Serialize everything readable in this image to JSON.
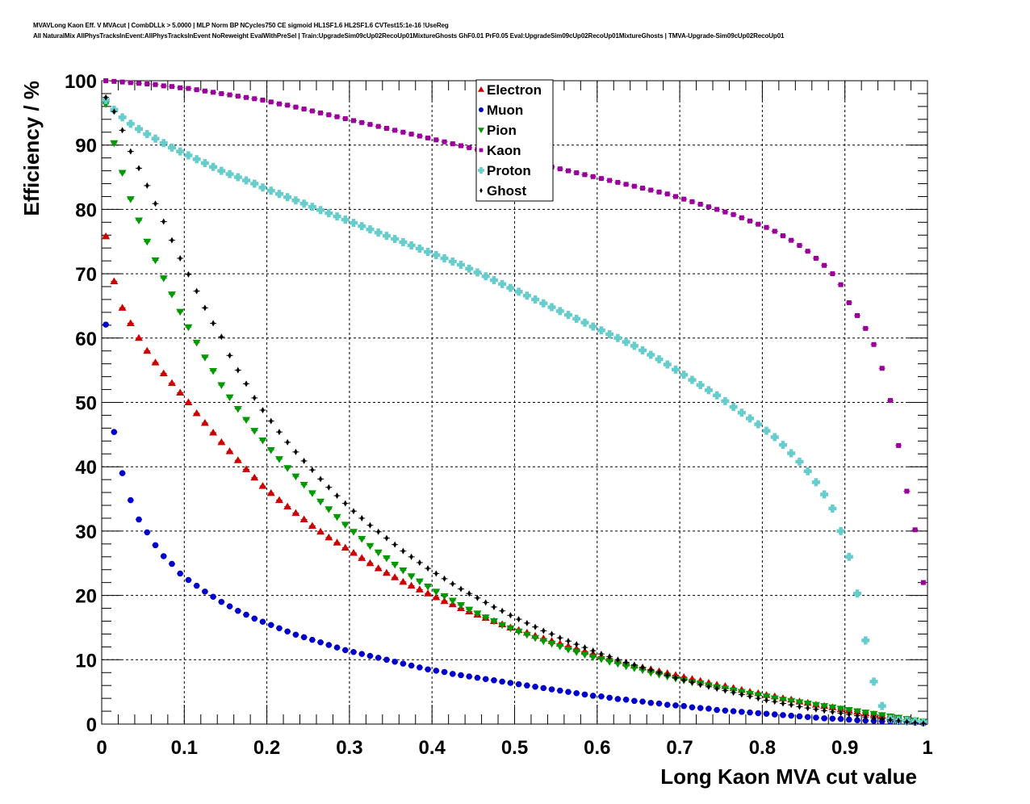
{
  "header": {
    "line1": "MVAVLong Kaon Eff. V MVAcut | CombDLLk > 5.0000 | MLP Norm BP NCycles750 CE sigmoid HL1SF1.6 HL2SF1.6 CVTest15:1e-16 !UseReg",
    "line2": "All NaturalMix AllPhysTracksInEvent:AllPhysTracksInEvent NoReweight EvalWithPreSel | Train:UpgradeSim09cUp02RecoUp01MixtureGhosts GhF0.01 PrF0.05 Eval:UpgradeSim09cUp02RecoUp01MixtureGhosts | TMVA-Upgrade-Sim09cUp02RecoUp01"
  },
  "chart_data": {
    "type": "scatter",
    "title": "",
    "xlabel": "Long Kaon MVA cut value",
    "ylabel": "Efficiency / %",
    "xlim": [
      0,
      1
    ],
    "ylim": [
      0,
      100
    ],
    "x_ticks": [
      "0",
      "0.1",
      "0.2",
      "0.3",
      "0.4",
      "0.5",
      "0.6",
      "0.7",
      "0.8",
      "0.9",
      "1"
    ],
    "y_ticks": [
      "0",
      "10",
      "20",
      "30",
      "40",
      "50",
      "60",
      "70",
      "80",
      "90",
      "100"
    ],
    "grid": true,
    "legend_position": "top-center",
    "x": [
      0.005,
      0.015,
      0.025,
      0.035,
      0.045,
      0.055,
      0.065,
      0.075,
      0.085,
      0.095,
      0.105,
      0.115,
      0.125,
      0.135,
      0.145,
      0.155,
      0.165,
      0.175,
      0.185,
      0.195,
      0.205,
      0.215,
      0.225,
      0.235,
      0.245,
      0.255,
      0.265,
      0.275,
      0.285,
      0.295,
      0.305,
      0.315,
      0.325,
      0.335,
      0.345,
      0.355,
      0.365,
      0.375,
      0.385,
      0.395,
      0.405,
      0.415,
      0.425,
      0.435,
      0.445,
      0.455,
      0.465,
      0.475,
      0.485,
      0.495,
      0.505,
      0.515,
      0.525,
      0.535,
      0.545,
      0.555,
      0.565,
      0.575,
      0.585,
      0.595,
      0.605,
      0.615,
      0.625,
      0.635,
      0.645,
      0.655,
      0.665,
      0.675,
      0.685,
      0.695,
      0.705,
      0.715,
      0.725,
      0.735,
      0.745,
      0.755,
      0.765,
      0.775,
      0.785,
      0.795,
      0.805,
      0.815,
      0.825,
      0.835,
      0.845,
      0.855,
      0.865,
      0.875,
      0.885,
      0.895,
      0.905,
      0.915,
      0.925,
      0.935,
      0.945,
      0.955,
      0.965,
      0.975,
      0.985,
      0.995
    ],
    "series": [
      {
        "name": "Electron",
        "color": "#cc0000",
        "marker": "triangle-up",
        "values": [
          75.8,
          68.8,
          64.7,
          62.3,
          60.0,
          58.0,
          56.2,
          54.5,
          53.0,
          51.5,
          50.0,
          48.3,
          46.8,
          45.3,
          43.8,
          42.4,
          41.0,
          39.6,
          38.3,
          37.0,
          35.9,
          34.8,
          33.8,
          32.8,
          31.8,
          30.8,
          29.9,
          29.0,
          28.2,
          27.4,
          26.6,
          25.8,
          25.0,
          24.2,
          23.5,
          22.8,
          22.1,
          21.5,
          20.9,
          20.3,
          19.7,
          19.1,
          18.6,
          18.0,
          17.5,
          17.0,
          16.5,
          16.0,
          15.5,
          15.0,
          14.6,
          14.2,
          13.7,
          13.3,
          12.9,
          12.5,
          12.1,
          11.7,
          11.3,
          10.9,
          10.5,
          10.2,
          9.8,
          9.5,
          9.1,
          8.8,
          8.5,
          8.2,
          7.9,
          7.6,
          7.3,
          7.0,
          6.7,
          6.4,
          6.1,
          5.9,
          5.6,
          5.3,
          5.0,
          4.8,
          4.5,
          4.3,
          4.0,
          3.8,
          3.5,
          3.3,
          3.0,
          2.8,
          2.6,
          2.3,
          2.1,
          1.9,
          1.7,
          1.5,
          1.3,
          1.1,
          0.9,
          0.7,
          0.5,
          0.3
        ]
      },
      {
        "name": "Muon",
        "color": "#0000cc",
        "marker": "circle",
        "values": [
          62.1,
          45.4,
          39.0,
          34.8,
          31.8,
          29.8,
          27.8,
          26.1,
          24.9,
          23.4,
          22.4,
          21.5,
          20.6,
          19.8,
          19.0,
          18.3,
          17.6,
          17.0,
          16.4,
          15.9,
          15.4,
          14.9,
          14.4,
          13.9,
          13.5,
          13.1,
          12.7,
          12.3,
          11.9,
          11.5,
          11.2,
          10.9,
          10.6,
          10.3,
          10.0,
          9.7,
          9.4,
          9.1,
          8.8,
          8.5,
          8.3,
          8.1,
          7.8,
          7.6,
          7.4,
          7.2,
          7.0,
          6.8,
          6.6,
          6.4,
          6.2,
          6.0,
          5.8,
          5.6,
          5.4,
          5.2,
          5.0,
          4.8,
          4.6,
          4.4,
          4.3,
          4.1,
          3.9,
          3.8,
          3.6,
          3.5,
          3.3,
          3.2,
          3.0,
          2.9,
          2.8,
          2.6,
          2.5,
          2.4,
          2.2,
          2.1,
          2.0,
          1.9,
          1.8,
          1.7,
          1.6,
          1.5,
          1.4,
          1.3,
          1.2,
          1.1,
          1.0,
          0.9,
          0.85,
          0.8,
          0.7,
          0.6,
          0.55,
          0.5,
          0.45,
          0.4,
          0.35,
          0.3,
          0.2,
          0.1
        ]
      },
      {
        "name": "Pion",
        "color": "#009900",
        "marker": "triangle-down",
        "values": [
          96.4,
          90.3,
          85.7,
          81.6,
          78.3,
          75.0,
          72.1,
          69.3,
          66.8,
          64.1,
          61.7,
          59.3,
          57.0,
          54.9,
          52.7,
          50.8,
          49.0,
          47.3,
          45.6,
          44.1,
          42.6,
          41.2,
          39.8,
          38.5,
          37.2,
          35.9,
          34.6,
          33.4,
          32.2,
          31.0,
          29.9,
          28.8,
          27.7,
          26.7,
          25.8,
          24.8,
          23.9,
          23.0,
          22.2,
          21.4,
          20.6,
          19.9,
          19.2,
          18.5,
          17.8,
          17.2,
          16.6,
          16.0,
          15.4,
          14.9,
          14.4,
          13.9,
          13.4,
          12.9,
          12.5,
          12.1,
          11.6,
          11.2,
          10.8,
          10.4,
          10.1,
          9.7,
          9.4,
          9.0,
          8.7,
          8.4,
          8.0,
          7.7,
          7.4,
          7.1,
          6.8,
          6.5,
          6.3,
          6.0,
          5.7,
          5.5,
          5.2,
          5.0,
          4.7,
          4.5,
          4.3,
          4.0,
          3.8,
          3.6,
          3.4,
          3.2,
          3.0,
          2.8,
          2.6,
          2.4,
          2.2,
          2.0,
          1.8,
          1.6,
          1.4,
          1.2,
          1.0,
          0.8,
          0.6,
          0.4
        ]
      },
      {
        "name": "Kaon",
        "color": "#990099",
        "marker": "square",
        "values": [
          100.0,
          99.9,
          99.8,
          99.7,
          99.6,
          99.5,
          99.4,
          99.2,
          99.1,
          98.9,
          98.8,
          98.6,
          98.4,
          98.2,
          98.0,
          97.8,
          97.6,
          97.4,
          97.2,
          97.0,
          96.7,
          96.4,
          96.2,
          95.9,
          95.6,
          95.3,
          95.0,
          94.7,
          94.4,
          94.1,
          93.8,
          93.5,
          93.2,
          92.9,
          92.6,
          92.3,
          92.0,
          91.7,
          91.4,
          91.1,
          90.8,
          90.5,
          90.2,
          89.9,
          89.6,
          89.3,
          89.0,
          88.7,
          88.4,
          88.1,
          87.8,
          87.5,
          87.2,
          86.9,
          86.6,
          86.3,
          86.0,
          85.7,
          85.4,
          85.1,
          84.8,
          84.5,
          84.2,
          83.9,
          83.6,
          83.3,
          83.0,
          82.7,
          82.4,
          82.0,
          81.6,
          81.2,
          80.8,
          80.4,
          80.0,
          79.6,
          79.2,
          78.7,
          78.2,
          77.7,
          77.2,
          76.6,
          75.9,
          75.2,
          74.4,
          73.5,
          72.4,
          71.3,
          70.0,
          68.3,
          65.5,
          63.5,
          61.5,
          59.0,
          55.3,
          50.3,
          43.3,
          36.2,
          30.2,
          22.0
        ]
      },
      {
        "name": "Proton",
        "color": "#66cccc",
        "marker": "cross",
        "values": [
          97.0,
          95.5,
          94.3,
          93.3,
          92.5,
          91.7,
          91.0,
          90.3,
          89.6,
          89.0,
          88.4,
          87.8,
          87.2,
          86.6,
          86.0,
          85.5,
          85.0,
          84.5,
          84.0,
          83.4,
          82.9,
          82.4,
          81.9,
          81.4,
          80.9,
          80.4,
          79.9,
          79.4,
          78.9,
          78.4,
          77.9,
          77.4,
          76.9,
          76.4,
          75.9,
          75.4,
          74.9,
          74.4,
          73.9,
          73.4,
          72.9,
          72.4,
          71.9,
          71.4,
          70.8,
          70.2,
          69.6,
          69.0,
          68.4,
          67.8,
          67.2,
          66.6,
          66.0,
          65.4,
          64.8,
          64.2,
          63.6,
          63.0,
          62.4,
          61.8,
          61.2,
          60.6,
          60.0,
          59.4,
          58.8,
          58.1,
          57.4,
          56.7,
          55.9,
          55.1,
          54.3,
          53.5,
          52.7,
          51.9,
          51.1,
          50.2,
          49.3,
          48.4,
          47.5,
          46.6,
          45.6,
          44.6,
          43.4,
          42.1,
          40.8,
          39.3,
          37.6,
          35.7,
          33.5,
          30.0,
          26.0,
          20.3,
          13.0,
          6.6,
          2.8,
          0.8,
          0.6,
          0.5,
          0.4,
          0.3
        ]
      },
      {
        "name": "Ghost",
        "color": "#000000",
        "marker": "diamond",
        "values": [
          97.4,
          95.2,
          92.3,
          89.0,
          86.4,
          83.7,
          80.9,
          78.1,
          75.2,
          72.4,
          69.9,
          67.3,
          64.7,
          62.3,
          60.2,
          57.3,
          55.0,
          52.9,
          50.7,
          48.8,
          47.1,
          45.4,
          43.8,
          42.3,
          40.9,
          39.5,
          38.1,
          36.8,
          35.5,
          34.3,
          33.1,
          32.0,
          30.9,
          29.9,
          28.9,
          27.9,
          26.9,
          26.0,
          25.1,
          24.2,
          23.4,
          22.6,
          21.8,
          21.0,
          20.3,
          19.6,
          18.9,
          18.2,
          17.6,
          16.9,
          16.3,
          15.7,
          15.1,
          14.5,
          14.0,
          13.4,
          12.9,
          12.4,
          11.9,
          11.4,
          10.9,
          10.5,
          10.0,
          9.6,
          9.2,
          8.8,
          8.4,
          8.0,
          7.6,
          7.2,
          6.8,
          6.5,
          6.1,
          5.8,
          5.5,
          5.2,
          4.9,
          4.6,
          4.3,
          4.0,
          3.7,
          3.5,
          3.2,
          3.0,
          2.7,
          2.5,
          2.3,
          2.1,
          1.9,
          1.7,
          1.5,
          1.3,
          1.1,
          0.95,
          0.8,
          0.65,
          0.5,
          0.35,
          0.2,
          0.1
        ]
      }
    ]
  }
}
